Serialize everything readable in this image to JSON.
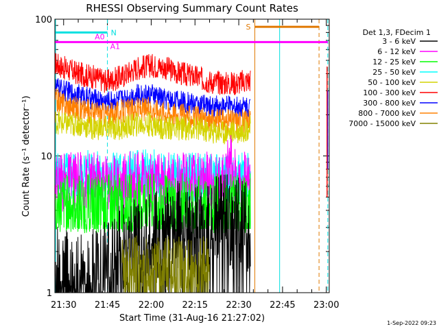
{
  "chart_data": {
    "type": "line",
    "title": "RHESSI Observing Summary Count Rates",
    "xlabel": "Start Time (31-Aug-16 21:27:02)",
    "ylabel": "Count Rate (s⁻¹ detector⁻¹)",
    "y_scale": "log",
    "ylim": [
      1,
      100
    ],
    "x_unit": "minutes after 21:00 UT",
    "xlim": [
      27.0,
      121.0
    ],
    "data_end": 94.0,
    "x_ticks": [
      {
        "value": 30,
        "label": "21:30"
      },
      {
        "value": 45,
        "label": "21:45"
      },
      {
        "value": 60,
        "label": "22:00"
      },
      {
        "value": 75,
        "label": "22:15"
      },
      {
        "value": 90,
        "label": "22:30"
      },
      {
        "value": 105,
        "label": "22:45"
      },
      {
        "value": 120,
        "label": "23:00"
      }
    ],
    "y_ticks": [
      {
        "value": 1,
        "label": "1"
      },
      {
        "value": 10,
        "label": "10"
      },
      {
        "value": 100,
        "label": "100"
      }
    ],
    "legend": {
      "placement": "right",
      "header": "Det 1,3, FDecim 1",
      "entries": [
        {
          "name": "3 - 6 keV",
          "color": "#000000"
        },
        {
          "name": "6 - 12 keV",
          "color": "#ff00ff"
        },
        {
          "name": "12 - 25 keV",
          "color": "#00ff00"
        },
        {
          "name": "25 - 50 keV",
          "color": "#00ffff"
        },
        {
          "name": "50 - 100 keV",
          "color": "#d4d400"
        },
        {
          "name": "100 - 300 keV",
          "color": "#ff0000"
        },
        {
          "name": "300 - 800 keV",
          "color": "#0000ff"
        },
        {
          "name": "800 - 7000 keV",
          "color": "#ff8000"
        },
        {
          "name": "7000 - 15000 keV",
          "color": "#808000"
        }
      ]
    },
    "series": [
      {
        "name": "100 - 300 keV",
        "color": "#ff0000",
        "x": [
          27,
          30,
          35,
          40,
          45,
          50,
          55,
          60,
          65,
          70,
          75,
          80,
          85,
          89,
          94
        ],
        "values": [
          48,
          44,
          40,
          38,
          35,
          38,
          44,
          46,
          44,
          40,
          38,
          35,
          34,
          34,
          36
        ]
      },
      {
        "name": "300 - 800 keV",
        "color": "#0000ff",
        "x": [
          27,
          30,
          35,
          40,
          45,
          50,
          55,
          60,
          65,
          70,
          75,
          80,
          85,
          89,
          94
        ],
        "values": [
          32,
          30,
          28,
          26,
          25,
          26,
          28,
          28,
          26,
          25,
          24,
          23,
          23,
          23,
          23
        ]
      },
      {
        "name": "800 - 7000 keV",
        "color": "#ff8000",
        "x": [
          27,
          30,
          35,
          40,
          45,
          50,
          55,
          60,
          65,
          70,
          75,
          80,
          85,
          89,
          94
        ],
        "values": [
          26,
          24,
          22,
          21,
          20,
          21,
          22,
          22,
          21,
          20,
          19,
          18,
          18,
          18,
          18
        ]
      },
      {
        "name": "50 - 100 keV",
        "color": "#d4d400",
        "x": [
          27,
          30,
          35,
          40,
          45,
          50,
          55,
          60,
          65,
          70,
          75,
          80,
          85,
          89,
          94
        ],
        "values": [
          18,
          17,
          17,
          16,
          16,
          16,
          17,
          17,
          16,
          16,
          16,
          15,
          15,
          15,
          16
        ]
      },
      {
        "name": "25 - 50 keV",
        "color": "#00ffff",
        "x": [
          27,
          30,
          35,
          40,
          45,
          50,
          55,
          60,
          65,
          70,
          75,
          80,
          85,
          89,
          94
        ],
        "values": [
          7.5,
          7,
          7,
          7.5,
          7,
          7,
          7.5,
          7.5,
          7,
          7,
          7,
          7,
          7,
          7,
          7
        ]
      },
      {
        "name": "6 - 12 keV",
        "color": "#ff00ff",
        "x": [
          27,
          30,
          35,
          40,
          45,
          50,
          55,
          60,
          65,
          70,
          75,
          80,
          85,
          87,
          89,
          94
        ],
        "values": [
          6.5,
          6.5,
          6.5,
          6.5,
          6.5,
          6.5,
          6.5,
          6.5,
          6.5,
          6.5,
          6.5,
          6.5,
          6.5,
          9.5,
          6.5,
          6.5
        ]
      },
      {
        "name": "12 - 25 keV",
        "color": "#00ff00",
        "x": [
          27,
          30,
          35,
          40,
          45,
          50,
          55,
          60,
          65,
          70,
          75,
          80,
          85,
          89,
          94
        ],
        "values": [
          4.5,
          4.5,
          4.5,
          4.5,
          4.5,
          4.5,
          4.5,
          4.5,
          4.5,
          4.5,
          4.5,
          4.5,
          4.5,
          4.5,
          4.5
        ]
      },
      {
        "name": "3 - 6 keV",
        "color": "#000000",
        "x": [
          27,
          30,
          35,
          40,
          45,
          50,
          55,
          60,
          65,
          70,
          75,
          80,
          85,
          89,
          94
        ],
        "values": [
          1.4,
          1.3,
          1.2,
          1.3,
          1.8,
          2.0,
          2.2,
          2.5,
          2.7,
          3.0,
          3.2,
          3.0,
          3.4,
          3.2,
          2.8
        ]
      },
      {
        "name": "7000 - 15000 keV",
        "color": "#808000",
        "x": [
          50,
          55,
          60,
          65,
          70,
          75,
          80
        ],
        "values": [
          1.3,
          1.4,
          1.2,
          1.5,
          1.3,
          1.2,
          1.4
        ]
      }
    ],
    "annotations": [
      {
        "label": "N",
        "x_start": 27.0,
        "x_end": 45.0,
        "y": 80,
        "color": "#00e0e0"
      },
      {
        "label": "A0",
        "x_start": 27.0,
        "x_end": 45.0,
        "y": 68,
        "color": "#ff00ff"
      },
      {
        "label": "A1",
        "x_start": 45.0,
        "x_end": 120.5,
        "y": 68,
        "color": "#ff00ff"
      },
      {
        "label": "S",
        "x_start": 95.5,
        "x_end": 117.5,
        "y": 88,
        "color": "#e07800"
      }
    ],
    "vertical_markers": [
      {
        "x": 45.0,
        "style": "dashed",
        "color": "#00e0e0"
      },
      {
        "x": 95.5,
        "style": "solid",
        "color": "#e07800"
      },
      {
        "x": 104.0,
        "style": "solid",
        "color": "#00e0e0"
      },
      {
        "x": 117.5,
        "style": "dashed",
        "color": "#e07800"
      },
      {
        "x": 120.5,
        "style": "dashed",
        "color": "#00e0e0"
      }
    ],
    "footer_timestamp": "1-Sep-2022 09:23"
  }
}
